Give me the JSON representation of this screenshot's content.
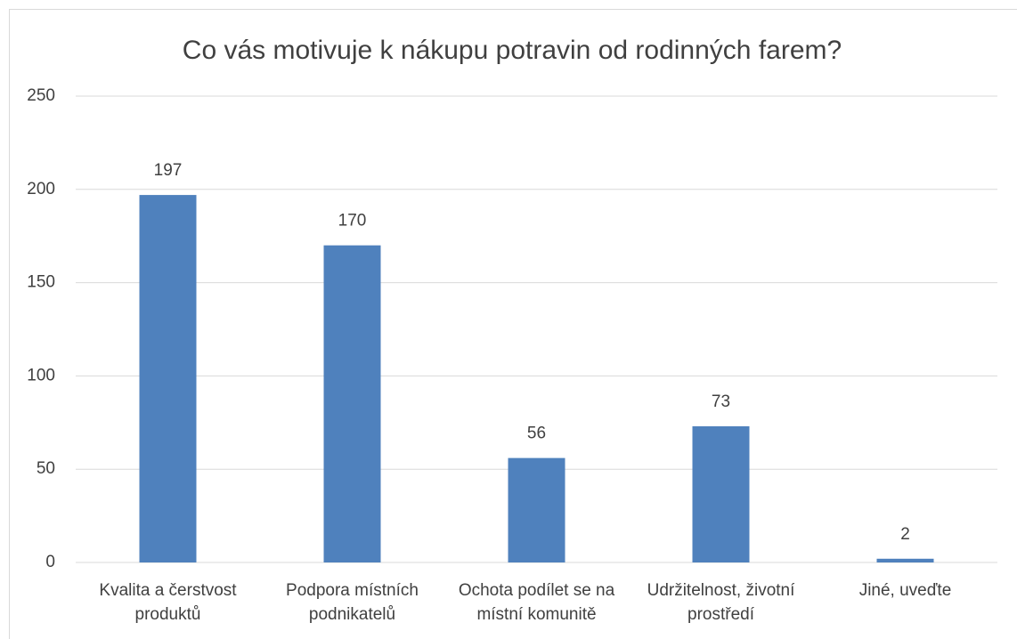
{
  "chart_data": {
    "type": "bar",
    "title": "Co vás motivuje k nákupu potravin od rodinných farem?",
    "categories": [
      "Kvalita a čerstvost produktů",
      "Podpora místních podnikatelů",
      "Ochota podílet se na místní komunitě",
      "Udržitelnost, životní prostředí",
      "Jiné, uveďte"
    ],
    "values": [
      197,
      170,
      56,
      73,
      2
    ],
    "color": "#4f81bd",
    "ylim": [
      0,
      250
    ],
    "yticks": [
      0,
      50,
      100,
      150,
      200,
      250
    ],
    "grid": true
  }
}
